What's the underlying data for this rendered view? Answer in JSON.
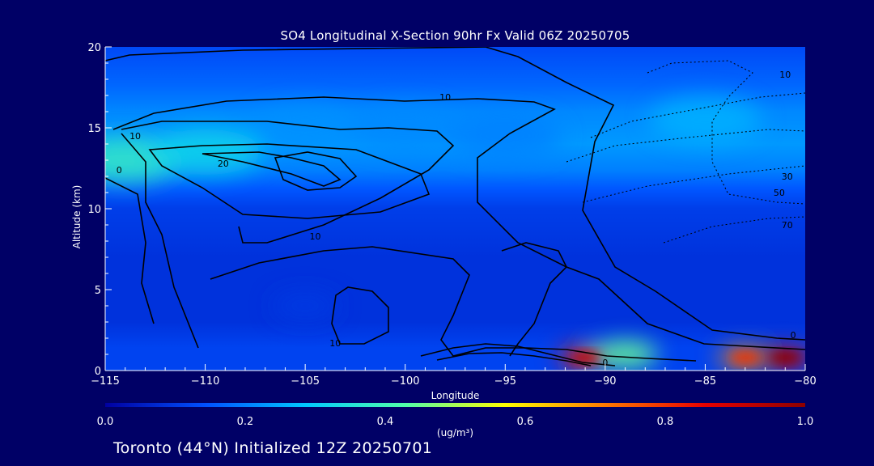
{
  "chart_data": {
    "type": "heatmap",
    "title": "SO4 Longitudinal X-Section 90hr  Fx Valid 06Z 20250705",
    "xlabel": "Longitude",
    "ylabel": "Altitude (km)",
    "xlim": [
      -115,
      -80
    ],
    "ylim": [
      0,
      20
    ],
    "x_ticks": [
      -115,
      -110,
      -105,
      -100,
      -95,
      -90,
      -85,
      -80
    ],
    "y_ticks": [
      0,
      5,
      10,
      15,
      20
    ],
    "colorbar": {
      "ticks": [
        0.0,
        0.2,
        0.4,
        0.6,
        0.8,
        1.0
      ],
      "tick_labels": [
        "0.0",
        "0.2",
        "0.4",
        "0.6",
        "0.8",
        "1.0"
      ],
      "units": "(ug/m³)",
      "range": [
        0.0,
        1.0
      ],
      "colormap": [
        "#0000a0",
        "#0050ff",
        "#00c8ff",
        "#50ffaa",
        "#ffff00",
        "#ff7800",
        "#e60000",
        "#8c0000"
      ]
    },
    "field_samples": [
      {
        "lon": -114,
        "alt": 13.0,
        "value": 0.38
      },
      {
        "lon": -110,
        "alt": 13.5,
        "value": 0.32
      },
      {
        "lon": -105,
        "alt": 15.0,
        "value": 0.22
      },
      {
        "lon": -100,
        "alt": 15.0,
        "value": 0.21
      },
      {
        "lon": -95,
        "alt": 14.5,
        "value": 0.2
      },
      {
        "lon": -85,
        "alt": 15.5,
        "value": 0.26
      },
      {
        "lon": -105,
        "alt": 4.0,
        "value": 0.1
      },
      {
        "lon": -91,
        "alt": 0.8,
        "value": 0.82
      },
      {
        "lon": -89,
        "alt": 1.0,
        "value": 0.45
      },
      {
        "lon": -83,
        "alt": 0.8,
        "value": 0.7
      },
      {
        "lon": -81,
        "alt": 0.8,
        "value": 0.9
      }
    ],
    "contour_labels": [
      {
        "text": "10",
        "lon": -113.5,
        "alt": 14.3
      },
      {
        "text": "0",
        "lon": -114.3,
        "alt": 12.2
      },
      {
        "text": "20",
        "lon": -109.1,
        "alt": 12.6
      },
      {
        "text": "10",
        "lon": -98.0,
        "alt": 16.7
      },
      {
        "text": "10",
        "lon": -104.5,
        "alt": 8.1
      },
      {
        "text": "10",
        "lon": -103.5,
        "alt": 1.5
      },
      {
        "text": "10",
        "lon": -81.0,
        "alt": 18.1
      },
      {
        "text": "0",
        "lon": -90.0,
        "alt": 0.3
      }
    ],
    "dashed_labels": [
      {
        "text": "30",
        "lon": -80.9,
        "alt": 11.8
      },
      {
        "text": "50",
        "lon": -81.3,
        "alt": 10.8
      },
      {
        "text": "70",
        "lon": -80.9,
        "alt": 8.8
      },
      {
        "text": "0",
        "lon": -80.6,
        "alt": 2.0
      }
    ]
  },
  "footer": "Toronto (44°N) Initialized 12Z 20250701"
}
